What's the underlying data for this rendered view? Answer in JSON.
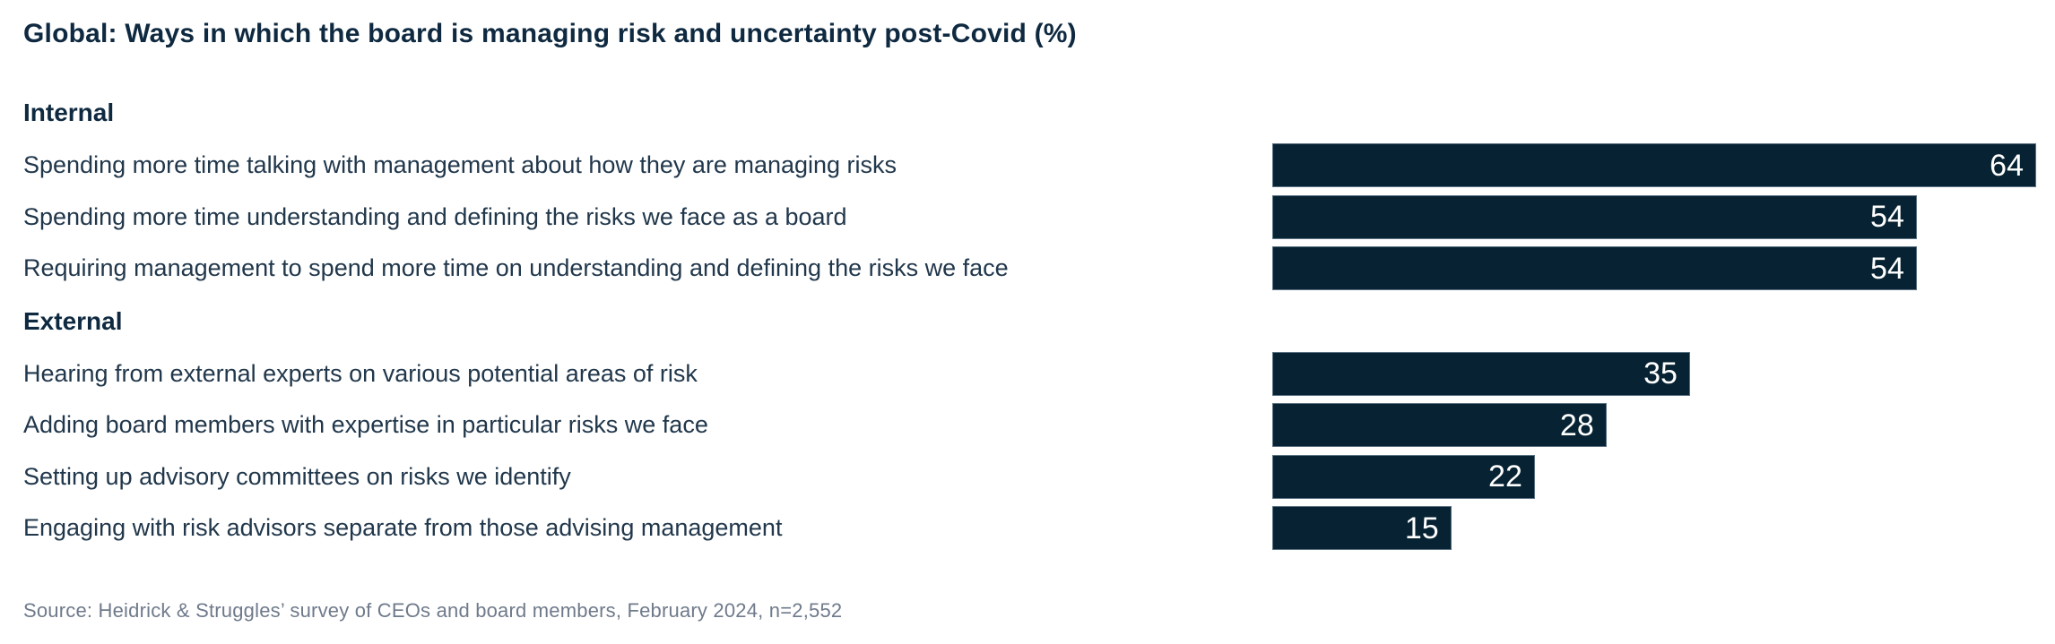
{
  "title": "Global: Ways in which the board is managing risk and uncertainty post-Covid (%)",
  "source": "Source: Heidrick & Struggles’ survey of CEOs and board members, February 2024, n=2,552",
  "colors": {
    "bar_fill": "#062233",
    "title_text": "#0e2940",
    "label_text": "#21374b",
    "value_text": "#ffffff",
    "source_text": "#6f7a8b"
  },
  "chart_data": {
    "type": "bar",
    "orientation": "horizontal",
    "title": "Global: Ways in which the board is managing risk and uncertainty post-Covid (%)",
    "unit": "%",
    "scale_max": 64,
    "value_labels": "inside-right",
    "grid": false,
    "legend": false,
    "sections": [
      {
        "label": "Internal",
        "items": [
          {
            "label": "Spending more time talking with management about how they are managing risks",
            "value": 64
          },
          {
            "label": "Spending more time understanding and defining the risks we face as a board",
            "value": 54
          },
          {
            "label": "Requiring management to spend more time on understanding and defining the risks we face",
            "value": 54
          }
        ]
      },
      {
        "label": "External",
        "items": [
          {
            "label": "Hearing from external experts on various potential areas of risk",
            "value": 35
          },
          {
            "label": "Adding board members with expertise in particular risks we face",
            "value": 28
          },
          {
            "label": "Setting up advisory committees on risks we identify",
            "value": 22
          },
          {
            "label": "Engaging with risk advisors separate from those advising management",
            "value": 15
          }
        ]
      }
    ]
  }
}
